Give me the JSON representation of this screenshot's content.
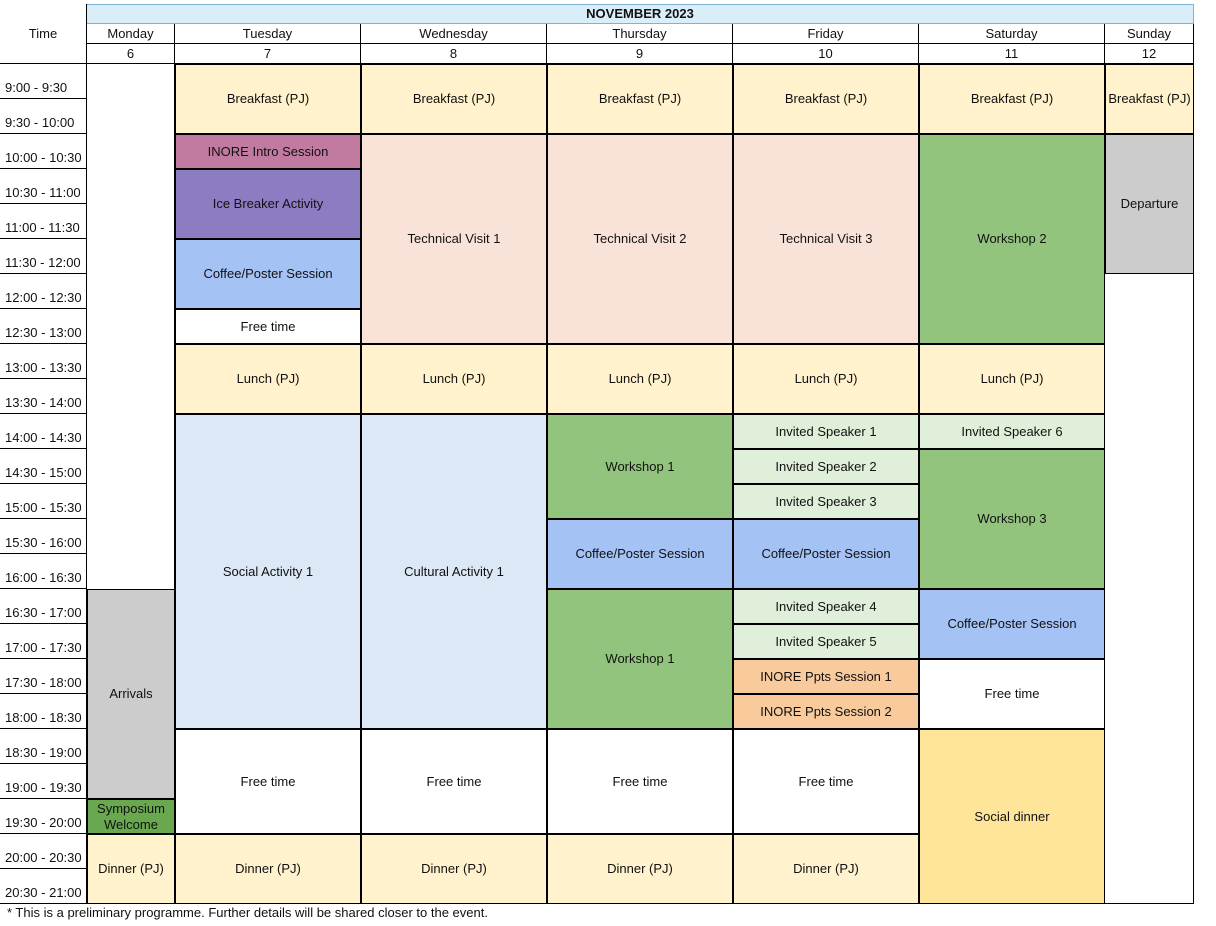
{
  "header": {
    "month_title": "NOVEMBER 2023",
    "time_label": "Time",
    "days": [
      {
        "name": "Monday",
        "date": "6"
      },
      {
        "name": "Tuesday",
        "date": "7"
      },
      {
        "name": "Wednesday",
        "date": "8"
      },
      {
        "name": "Thursday",
        "date": "9"
      },
      {
        "name": "Friday",
        "date": "10"
      },
      {
        "name": "Saturday",
        "date": "11"
      },
      {
        "name": "Sunday",
        "date": "12"
      }
    ]
  },
  "time_slots": [
    "9:00 - 9:30",
    "9:30 - 10:00",
    "10:00 - 10:30",
    "10:30 - 11:00",
    "11:00 - 11:30",
    "11:30 - 12:00",
    "12:00 - 12:30",
    "12:30 - 13:00",
    "13:00 - 13:30",
    "13:30 - 14:00",
    "14:00 - 14:30",
    "14:30 - 15:00",
    "15:00 - 15:30",
    "15:30 - 16:00",
    "16:00 - 16:30",
    "16:30 - 17:00",
    "17:00 - 17:30",
    "17:30 - 18:00",
    "18:00 - 18:30",
    "18:30 - 19:00",
    "19:00 - 19:30",
    "19:30 - 20:00",
    "20:00 - 20:30",
    "20:30 - 21:00"
  ],
  "colors": {
    "meal": "#fff2cc",
    "intro": "#c27ba0",
    "icebreaker": "#8e7cc3",
    "coffee": "#a4c2f4",
    "visit": "#f9e3d9",
    "workshop": "#93c47d",
    "activity": "#dce8f6",
    "invited": "#e0efd9",
    "ppts": "#f9cb9c",
    "grey": "#cccccc",
    "welcome": "#6aa84f",
    "social_dinner": "#ffe599",
    "free": "#ffffff"
  },
  "events": [
    {
      "day": 0,
      "start": 15,
      "end": 21,
      "label": "Arrivals",
      "color": "grey"
    },
    {
      "day": 0,
      "start": 21,
      "end": 22,
      "label": "Symposium Welcome",
      "color": "welcome"
    },
    {
      "day": 0,
      "start": 22,
      "end": 24,
      "label": "Dinner (PJ)",
      "color": "meal"
    },
    {
      "day": 1,
      "start": 0,
      "end": 2,
      "label": "Breakfast (PJ)",
      "color": "meal"
    },
    {
      "day": 1,
      "start": 2,
      "end": 3,
      "label": "INORE Intro Session",
      "color": "intro"
    },
    {
      "day": 1,
      "start": 3,
      "end": 5,
      "label": "Ice Breaker Activity",
      "color": "icebreaker"
    },
    {
      "day": 1,
      "start": 5,
      "end": 7,
      "label": "Coffee/Poster Session",
      "color": "coffee"
    },
    {
      "day": 1,
      "start": 7,
      "end": 8,
      "label": "Free time",
      "color": "free"
    },
    {
      "day": 1,
      "start": 8,
      "end": 10,
      "label": "Lunch (PJ)",
      "color": "meal"
    },
    {
      "day": 1,
      "start": 10,
      "end": 19,
      "label": "Social Activity 1",
      "color": "activity"
    },
    {
      "day": 1,
      "start": 19,
      "end": 22,
      "label": "Free time",
      "color": "free"
    },
    {
      "day": 1,
      "start": 22,
      "end": 24,
      "label": "Dinner (PJ)",
      "color": "meal"
    },
    {
      "day": 2,
      "start": 0,
      "end": 2,
      "label": "Breakfast (PJ)",
      "color": "meal"
    },
    {
      "day": 2,
      "start": 2,
      "end": 8,
      "label": "Technical Visit 1",
      "color": "visit"
    },
    {
      "day": 2,
      "start": 8,
      "end": 10,
      "label": "Lunch (PJ)",
      "color": "meal"
    },
    {
      "day": 2,
      "start": 10,
      "end": 19,
      "label": "Cultural Activity 1",
      "color": "activity"
    },
    {
      "day": 2,
      "start": 19,
      "end": 22,
      "label": "Free time",
      "color": "free"
    },
    {
      "day": 2,
      "start": 22,
      "end": 24,
      "label": "Dinner (PJ)",
      "color": "meal"
    },
    {
      "day": 3,
      "start": 0,
      "end": 2,
      "label": "Breakfast (PJ)",
      "color": "meal"
    },
    {
      "day": 3,
      "start": 2,
      "end": 8,
      "label": "Technical Visit 2",
      "color": "visit"
    },
    {
      "day": 3,
      "start": 8,
      "end": 10,
      "label": "Lunch (PJ)",
      "color": "meal"
    },
    {
      "day": 3,
      "start": 10,
      "end": 13,
      "label": "Workshop 1",
      "color": "workshop"
    },
    {
      "day": 3,
      "start": 13,
      "end": 15,
      "label": "Coffee/Poster Session",
      "color": "coffee"
    },
    {
      "day": 3,
      "start": 15,
      "end": 19,
      "label": "Workshop 1",
      "color": "workshop"
    },
    {
      "day": 3,
      "start": 19,
      "end": 22,
      "label": "Free time",
      "color": "free"
    },
    {
      "day": 3,
      "start": 22,
      "end": 24,
      "label": "Dinner (PJ)",
      "color": "meal"
    },
    {
      "day": 4,
      "start": 0,
      "end": 2,
      "label": "Breakfast (PJ)",
      "color": "meal"
    },
    {
      "day": 4,
      "start": 2,
      "end": 8,
      "label": "Technical Visit 3",
      "color": "visit"
    },
    {
      "day": 4,
      "start": 8,
      "end": 10,
      "label": "Lunch (PJ)",
      "color": "meal"
    },
    {
      "day": 4,
      "start": 10,
      "end": 11,
      "label": "Invited Speaker 1",
      "color": "invited"
    },
    {
      "day": 4,
      "start": 11,
      "end": 12,
      "label": "Invited Speaker 2",
      "color": "invited"
    },
    {
      "day": 4,
      "start": 12,
      "end": 13,
      "label": "Invited Speaker 3",
      "color": "invited"
    },
    {
      "day": 4,
      "start": 13,
      "end": 15,
      "label": "Coffee/Poster Session",
      "color": "coffee"
    },
    {
      "day": 4,
      "start": 15,
      "end": 16,
      "label": "Invited Speaker 4",
      "color": "invited"
    },
    {
      "day": 4,
      "start": 16,
      "end": 17,
      "label": "Invited Speaker 5",
      "color": "invited"
    },
    {
      "day": 4,
      "start": 17,
      "end": 18,
      "label": "INORE Ppts Session 1",
      "color": "ppts"
    },
    {
      "day": 4,
      "start": 18,
      "end": 19,
      "label": "INORE Ppts Session 2",
      "color": "ppts"
    },
    {
      "day": 4,
      "start": 19,
      "end": 22,
      "label": "Free time",
      "color": "free"
    },
    {
      "day": 4,
      "start": 22,
      "end": 24,
      "label": "Dinner (PJ)",
      "color": "meal"
    },
    {
      "day": 5,
      "start": 0,
      "end": 2,
      "label": "Breakfast (PJ)",
      "color": "meal"
    },
    {
      "day": 5,
      "start": 2,
      "end": 8,
      "label": "Workshop 2",
      "color": "workshop"
    },
    {
      "day": 5,
      "start": 8,
      "end": 10,
      "label": "Lunch (PJ)",
      "color": "meal"
    },
    {
      "day": 5,
      "start": 10,
      "end": 11,
      "label": "Invited Speaker 6",
      "color": "invited"
    },
    {
      "day": 5,
      "start": 11,
      "end": 15,
      "label": "Workshop 3",
      "color": "workshop"
    },
    {
      "day": 5,
      "start": 15,
      "end": 17,
      "label": "Coffee/Poster Session",
      "color": "coffee"
    },
    {
      "day": 5,
      "start": 17,
      "end": 19,
      "label": "Free time",
      "color": "free"
    },
    {
      "day": 5,
      "start": 19,
      "end": 24,
      "label": "Social dinner",
      "color": "social_dinner"
    },
    {
      "day": 6,
      "start": 0,
      "end": 2,
      "label": "Breakfast (PJ)",
      "color": "meal"
    },
    {
      "day": 6,
      "start": 2,
      "end": 6,
      "label": "Departure",
      "color": "grey"
    }
  ],
  "footnote": "* This is a preliminary programme. Further details will be shared closer to the event."
}
